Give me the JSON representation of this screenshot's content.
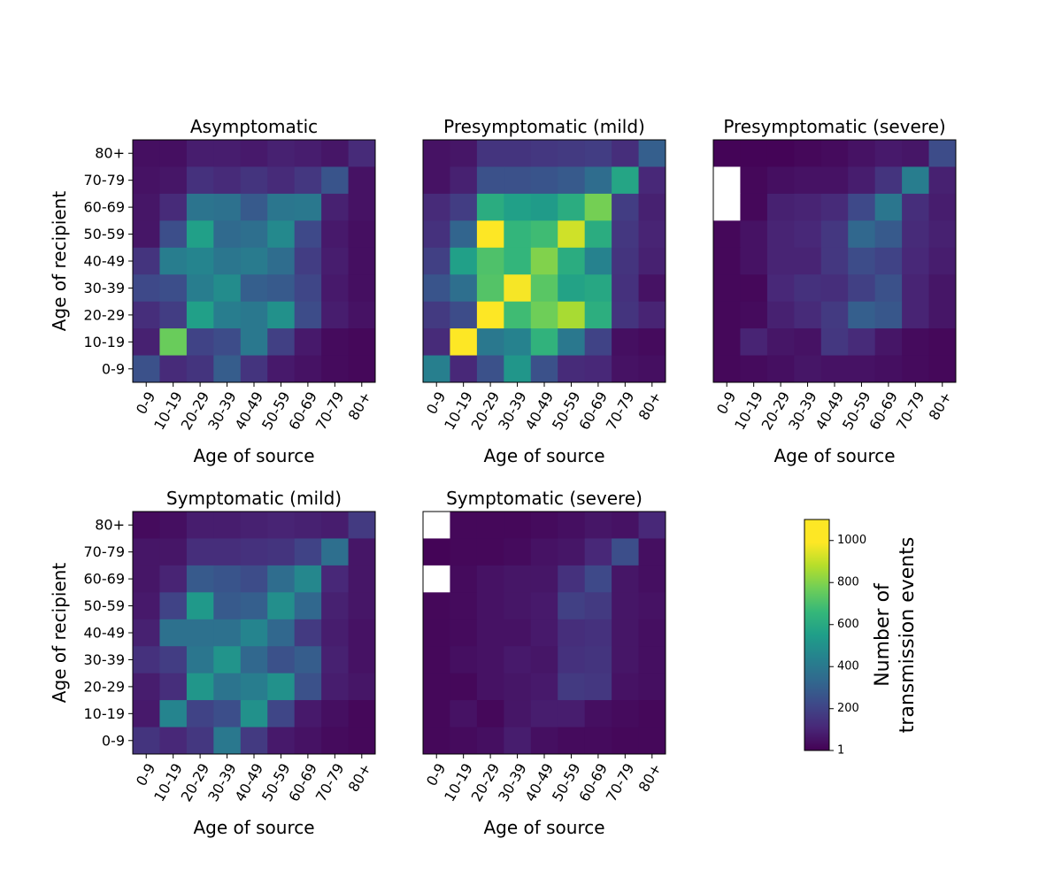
{
  "chart_data": {
    "type": "heatmap",
    "categories": [
      "0-9",
      "10-19",
      "20-29",
      "30-39",
      "40-49",
      "50-59",
      "60-69",
      "70-79",
      "80+"
    ],
    "xlabel": "Age of source",
    "ylabel": "Age of recipient",
    "colorbar": {
      "label_lines": [
        "Number of",
        "transmission events"
      ],
      "range": [
        1,
        1100
      ],
      "ticks": [
        1,
        200,
        400,
        600,
        800,
        1000
      ],
      "colormap": "viridis"
    },
    "value_note": "rows listed from recipient 80+ (top) to 0-9 (bottom); columns are source 0-9 to 80+; null = blank cell",
    "panels": [
      {
        "title": "Asymptomatic",
        "values": [
          [
            40,
            40,
            80,
            80,
            70,
            90,
            80,
            60,
            120
          ],
          [
            50,
            60,
            140,
            120,
            150,
            120,
            160,
            260,
            50
          ],
          [
            60,
            120,
            380,
            370,
            280,
            390,
            400,
            90,
            50
          ],
          [
            60,
            240,
            560,
            340,
            360,
            470,
            220,
            70,
            40
          ],
          [
            150,
            420,
            450,
            390,
            410,
            350,
            180,
            80,
            40
          ],
          [
            220,
            240,
            420,
            480,
            300,
            280,
            210,
            70,
            40
          ],
          [
            130,
            180,
            560,
            420,
            400,
            500,
            230,
            80,
            50
          ],
          [
            90,
            760,
            200,
            230,
            400,
            190,
            70,
            30,
            20
          ],
          [
            250,
            120,
            150,
            290,
            150,
            70,
            50,
            30,
            20
          ]
        ]
      },
      {
        "title": "Presymptomatic (mild)",
        "values": [
          [
            50,
            60,
            150,
            150,
            160,
            170,
            180,
            130,
            300
          ],
          [
            50,
            90,
            250,
            250,
            260,
            280,
            350,
            580,
            110
          ],
          [
            120,
            180,
            610,
            560,
            540,
            610,
            780,
            180,
            90
          ],
          [
            140,
            320,
            1000,
            650,
            680,
            920,
            610,
            160,
            100
          ],
          [
            190,
            560,
            710,
            650,
            800,
            610,
            440,
            150,
            90
          ],
          [
            260,
            360,
            720,
            980,
            730,
            570,
            590,
            140,
            50
          ],
          [
            170,
            230,
            1020,
            680,
            770,
            860,
            620,
            150,
            100
          ],
          [
            120,
            1100,
            400,
            440,
            640,
            400,
            200,
            40,
            30
          ],
          [
            430,
            110,
            250,
            520,
            250,
            120,
            110,
            50,
            40
          ]
        ]
      },
      {
        "title": "Presymptomatic (severe)",
        "values": [
          [
            10,
            10,
            10,
            20,
            30,
            50,
            70,
            60,
            230
          ],
          [
            null,
            20,
            40,
            50,
            50,
            80,
            150,
            420,
            90
          ],
          [
            null,
            20,
            90,
            100,
            120,
            220,
            390,
            130,
            80
          ],
          [
            20,
            50,
            100,
            110,
            160,
            330,
            280,
            120,
            90
          ],
          [
            20,
            50,
            100,
            100,
            160,
            230,
            200,
            110,
            80
          ],
          [
            20,
            20,
            110,
            140,
            130,
            190,
            250,
            100,
            60
          ],
          [
            20,
            30,
            90,
            120,
            170,
            300,
            270,
            100,
            60
          ],
          [
            20,
            100,
            60,
            50,
            160,
            120,
            60,
            30,
            20
          ],
          [
            20,
            30,
            40,
            60,
            50,
            50,
            40,
            30,
            20
          ]
        ]
      },
      {
        "title": "Symptomatic (mild)",
        "values": [
          [
            30,
            40,
            80,
            80,
            90,
            100,
            90,
            80,
            170
          ],
          [
            60,
            60,
            130,
            130,
            140,
            150,
            200,
            360,
            60
          ],
          [
            60,
            100,
            280,
            260,
            230,
            350,
            460,
            110,
            60
          ],
          [
            70,
            200,
            530,
            280,
            300,
            490,
            330,
            90,
            60
          ],
          [
            90,
            370,
            370,
            370,
            450,
            330,
            170,
            80,
            50
          ],
          [
            140,
            180,
            390,
            510,
            330,
            250,
            290,
            90,
            50
          ],
          [
            80,
            130,
            520,
            380,
            420,
            500,
            250,
            80,
            60
          ],
          [
            70,
            450,
            200,
            240,
            500,
            210,
            70,
            40,
            20
          ],
          [
            150,
            110,
            160,
            400,
            170,
            70,
            50,
            30,
            20
          ]
        ]
      },
      {
        "title": "Symptomatic (severe)",
        "values": [
          [
            null,
            20,
            20,
            20,
            30,
            40,
            60,
            50,
            110
          ],
          [
            10,
            20,
            20,
            30,
            50,
            60,
            110,
            240,
            40
          ],
          [
            null,
            30,
            50,
            60,
            60,
            140,
            220,
            60,
            40
          ],
          [
            20,
            30,
            50,
            60,
            70,
            190,
            170,
            60,
            50
          ],
          [
            20,
            30,
            50,
            50,
            70,
            130,
            140,
            60,
            40
          ],
          [
            20,
            40,
            50,
            70,
            60,
            140,
            150,
            60,
            40
          ],
          [
            20,
            20,
            50,
            60,
            70,
            170,
            160,
            50,
            40
          ],
          [
            20,
            50,
            20,
            60,
            80,
            80,
            40,
            30,
            20
          ],
          [
            20,
            30,
            40,
            80,
            40,
            30,
            30,
            20,
            20
          ]
        ]
      }
    ]
  }
}
